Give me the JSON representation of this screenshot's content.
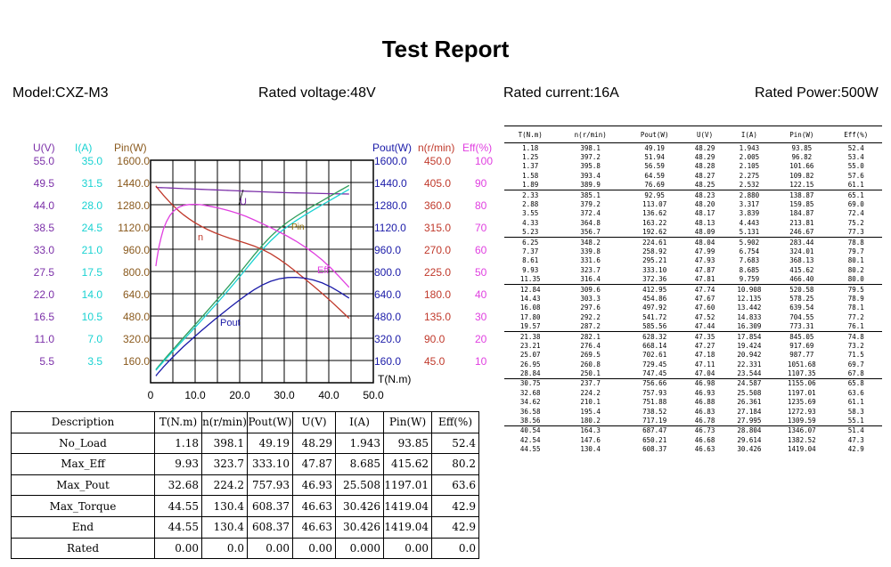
{
  "title": "Test Report",
  "info": {
    "model": "Model:CXZ-M3",
    "voltage": "Rated voltage:48V",
    "current": "Rated current:16A",
    "power": "Rated Power:500W"
  },
  "colors": {
    "U": "#7b2fa8",
    "I": "#19d2d2",
    "Pin": "#8a5a1e",
    "Pout": "#1a1aa8",
    "n": "#c0392b",
    "Eff": "#e040e0"
  },
  "chart_data": {
    "type": "line",
    "xlabel": "T(N.m)",
    "xlim": [
      0,
      50
    ],
    "x_ticks": [
      "0",
      "10.0",
      "20.0",
      "30.0",
      "40.0",
      "50.0"
    ],
    "left_axes": [
      {
        "label": "U(V)",
        "ticks": [
          "55.0",
          "49.5",
          "44.0",
          "38.5",
          "33.0",
          "27.5",
          "22.0",
          "16.5",
          "11.0",
          "5.5"
        ]
      },
      {
        "label": "I(A)",
        "ticks": [
          "35.0",
          "31.5",
          "28.0",
          "24.5",
          "21.0",
          "17.5",
          "14.0",
          "10.5",
          "7.0",
          "3.5"
        ]
      },
      {
        "label": "Pin(W)",
        "ticks": [
          "1600.0",
          "1440.0",
          "1280.0",
          "1120.0",
          "960.0",
          "800.0",
          "640.0",
          "480.0",
          "320.0",
          "160.0"
        ]
      }
    ],
    "right_axes": [
      {
        "label": "Pout(W)",
        "ticks": [
          "1600.0",
          "1440.0",
          "1280.0",
          "1120.0",
          "960.0",
          "800.0",
          "640.0",
          "480.0",
          "320.0",
          "160.0"
        ]
      },
      {
        "label": "n(r/min)",
        "ticks": [
          "450.0",
          "405.0",
          "360.0",
          "315.0",
          "270.0",
          "225.0",
          "180.0",
          "135.0",
          "90.0",
          "45.0"
        ]
      },
      {
        "label": "Eff(%)",
        "ticks": [
          "100",
          "90",
          "80",
          "70",
          "60",
          "50",
          "40",
          "30",
          "20",
          "10"
        ]
      }
    ],
    "series_labels": {
      "U": "U",
      "n": "n",
      "Pin": "Pin",
      "Eff": "Eff",
      "Pout": "Pout"
    },
    "grid": true
  },
  "summary": {
    "headers": [
      "Description",
      "T(N.m)",
      "n(r/min)",
      "Pout(W)",
      "U(V)",
      "I(A)",
      "Pin(W)",
      "Eff(%)"
    ],
    "rows": [
      [
        "No_Load",
        "1.18",
        "398.1",
        "49.19",
        "48.29",
        "1.943",
        "93.85",
        "52.4"
      ],
      [
        "Max_Eff",
        "9.93",
        "323.7",
        "333.10",
        "47.87",
        "8.685",
        "415.62",
        "80.2"
      ],
      [
        "Max_Pout",
        "32.68",
        "224.2",
        "757.93",
        "46.93",
        "25.508",
        "1197.01",
        "63.6"
      ],
      [
        "Max_Torque",
        "44.55",
        "130.4",
        "608.37",
        "46.63",
        "30.426",
        "1419.04",
        "42.9"
      ],
      [
        "End",
        "44.55",
        "130.4",
        "608.37",
        "46.63",
        "30.426",
        "1419.04",
        "42.9"
      ],
      [
        "Rated",
        "0.00",
        "0.0",
        "0.00",
        "0.00",
        "0.000",
        "0.00",
        "0.0"
      ]
    ]
  },
  "data_table": {
    "headers": [
      "T(N.m)",
      "n(r/min)",
      "Pout(W)",
      "U(V)",
      "I(A)",
      "Pin(W)",
      "Eff(%)"
    ],
    "rows": [
      [
        "1.18",
        "398.1",
        "49.19",
        "48.29",
        "1.943",
        "93.85",
        "52.4"
      ],
      [
        "1.25",
        "397.2",
        "51.94",
        "48.29",
        "2.005",
        "96.82",
        "53.4"
      ],
      [
        "1.37",
        "395.8",
        "56.59",
        "48.28",
        "2.105",
        "101.66",
        "55.0"
      ],
      [
        "1.58",
        "393.4",
        "64.59",
        "48.27",
        "2.275",
        "109.82",
        "57.6"
      ],
      [
        "1.89",
        "389.9",
        "76.69",
        "48.25",
        "2.532",
        "122.15",
        "61.1"
      ],
      [
        "2.33",
        "385.1",
        "92.95",
        "48.23",
        "2.880",
        "138.87",
        "65.1"
      ],
      [
        "2.88",
        "379.2",
        "113.07",
        "48.20",
        "3.317",
        "159.85",
        "69.0"
      ],
      [
        "3.55",
        "372.4",
        "136.62",
        "48.17",
        "3.839",
        "184.87",
        "72.4"
      ],
      [
        "4.33",
        "364.8",
        "163.22",
        "48.13",
        "4.443",
        "213.81",
        "75.2"
      ],
      [
        "5.23",
        "356.7",
        "192.62",
        "48.09",
        "5.131",
        "246.67",
        "77.3"
      ],
      [
        "6.25",
        "348.2",
        "224.61",
        "48.04",
        "5.902",
        "283.44",
        "78.8"
      ],
      [
        "7.37",
        "339.8",
        "258.92",
        "47.99",
        "6.754",
        "324.01",
        "79.7"
      ],
      [
        "8.61",
        "331.6",
        "295.21",
        "47.93",
        "7.683",
        "368.13",
        "80.1"
      ],
      [
        "9.93",
        "323.7",
        "333.10",
        "47.87",
        "8.685",
        "415.62",
        "80.2"
      ],
      [
        "11.35",
        "316.4",
        "372.36",
        "47.81",
        "9.759",
        "466.40",
        "80.0"
      ],
      [
        "12.84",
        "309.6",
        "412.95",
        "47.74",
        "10.908",
        "520.58",
        "79.5"
      ],
      [
        "14.43",
        "303.3",
        "454.86",
        "47.67",
        "12.135",
        "578.25",
        "78.9"
      ],
      [
        "16.08",
        "297.6",
        "497.92",
        "47.60",
        "13.442",
        "639.54",
        "78.1"
      ],
      [
        "17.80",
        "292.2",
        "541.72",
        "47.52",
        "14.833",
        "704.55",
        "77.2"
      ],
      [
        "19.57",
        "287.2",
        "585.56",
        "47.44",
        "16.309",
        "773.31",
        "76.1"
      ],
      [
        "21.38",
        "282.1",
        "628.32",
        "47.35",
        "17.854",
        "845.05",
        "74.8"
      ],
      [
        "23.21",
        "276.4",
        "668.14",
        "47.27",
        "19.424",
        "917.69",
        "73.2"
      ],
      [
        "25.07",
        "269.5",
        "702.61",
        "47.18",
        "20.942",
        "987.77",
        "71.5"
      ],
      [
        "26.95",
        "260.8",
        "729.45",
        "47.11",
        "22.331",
        "1051.68",
        "69.7"
      ],
      [
        "28.84",
        "250.1",
        "747.45",
        "47.04",
        "23.544",
        "1107.35",
        "67.8"
      ],
      [
        "30.75",
        "237.7",
        "756.66",
        "46.98",
        "24.587",
        "1155.06",
        "65.8"
      ],
      [
        "32.68",
        "224.2",
        "757.93",
        "46.93",
        "25.508",
        "1197.01",
        "63.6"
      ],
      [
        "34.62",
        "210.1",
        "751.88",
        "46.88",
        "26.361",
        "1235.69",
        "61.1"
      ],
      [
        "36.58",
        "195.4",
        "738.52",
        "46.83",
        "27.184",
        "1272.93",
        "58.3"
      ],
      [
        "38.56",
        "180.2",
        "717.19",
        "46.78",
        "27.995",
        "1309.59",
        "55.1"
      ],
      [
        "40.54",
        "164.3",
        "687.47",
        "46.73",
        "28.804",
        "1346.07",
        "51.4"
      ],
      [
        "42.54",
        "147.6",
        "650.21",
        "46.68",
        "29.614",
        "1382.52",
        "47.3"
      ],
      [
        "44.55",
        "130.4",
        "608.37",
        "46.63",
        "30.426",
        "1419.04",
        "42.9"
      ]
    ]
  }
}
